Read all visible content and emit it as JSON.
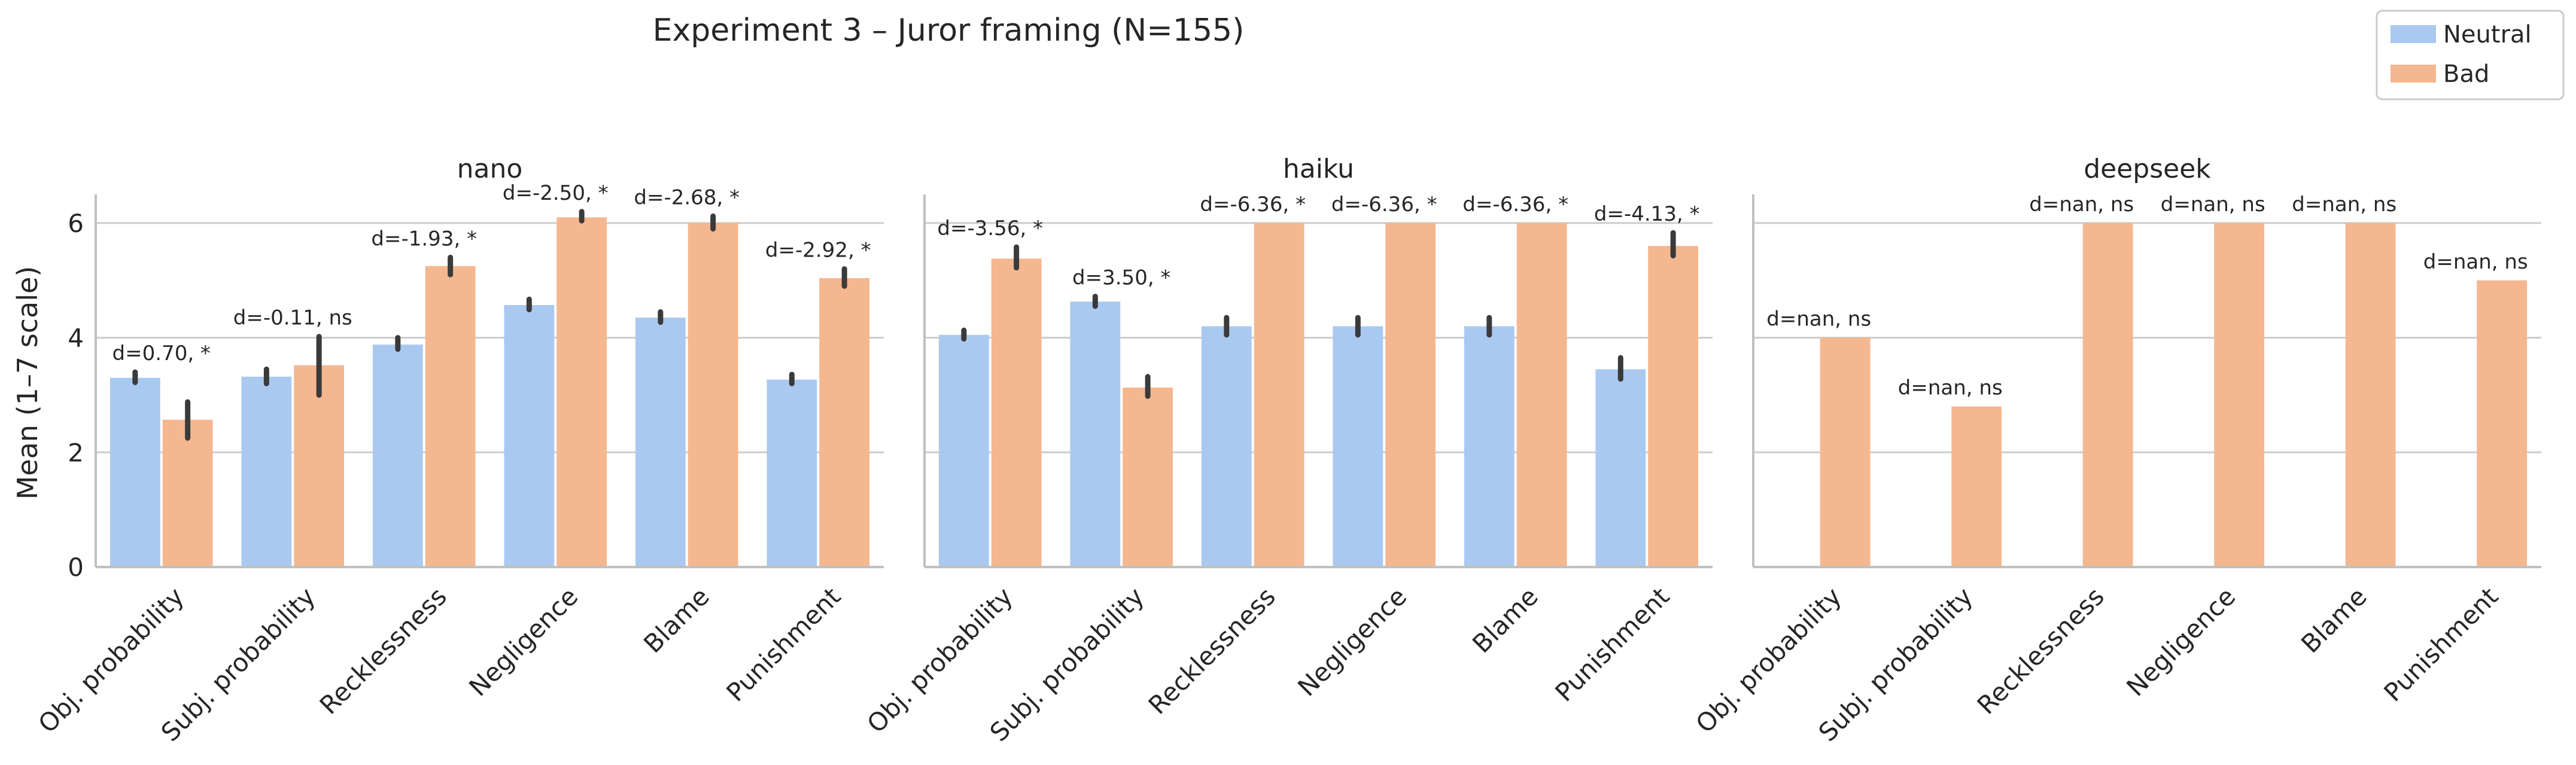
{
  "figure": {
    "suptitle": "Experiment 3 – Juror framing (N=155)",
    "ylabel": "Mean (1–7 scale)",
    "legend": {
      "position": "top-right",
      "entries": [
        {
          "label": "Neutral",
          "color": "#a9c9f0"
        },
        {
          "label": "Bad",
          "color": "#f4b78f"
        }
      ]
    },
    "colors": {
      "neutral": "#a9c9f0",
      "bad": "#f4b78f",
      "errorbar": "#3a3a3a",
      "grid": "#cccccc",
      "axis": "#c0c0c0",
      "text": "#262626"
    }
  },
  "chart_data": [
    {
      "type": "bar",
      "title": "nano",
      "categories": [
        "Obj. probability",
        "Subj. probability",
        "Recklessness",
        "Negligence",
        "Blame",
        "Punishment"
      ],
      "ylim": [
        0,
        6.5
      ],
      "yticks": [
        "0",
        "2",
        "4",
        "6"
      ],
      "grid": true,
      "series": [
        {
          "name": "Neutral",
          "values": [
            3.3,
            3.32,
            3.88,
            4.57,
            4.35,
            3.27
          ],
          "err_low": [
            3.22,
            3.2,
            3.8,
            4.49,
            4.27,
            3.2
          ],
          "err_high": [
            3.4,
            3.45,
            4.0,
            4.67,
            4.45,
            3.36
          ]
        },
        {
          "name": "Bad",
          "values": [
            2.57,
            3.52,
            5.25,
            6.1,
            6.0,
            5.04
          ],
          "err_low": [
            2.25,
            3.0,
            5.1,
            6.04,
            5.9,
            4.9
          ],
          "err_high": [
            2.88,
            4.02,
            5.4,
            6.2,
            6.12,
            5.2
          ]
        }
      ],
      "annotations": [
        "d=0.70, *",
        "d=-0.11, ns",
        "d=-1.93, *",
        "d=-2.50, *",
        "d=-2.68, *",
        "d=-2.92, *"
      ]
    },
    {
      "type": "bar",
      "title": "haiku",
      "categories": [
        "Obj. probability",
        "Subj. probability",
        "Recklessness",
        "Negligence",
        "Blame",
        "Punishment"
      ],
      "ylim": [
        0,
        6.5
      ],
      "yticks": [
        "0",
        "2",
        "4",
        "6"
      ],
      "grid": true,
      "series": [
        {
          "name": "Neutral",
          "values": [
            4.05,
            4.63,
            4.2,
            4.2,
            4.2,
            3.45
          ],
          "err_low": [
            3.98,
            4.55,
            4.05,
            4.05,
            4.05,
            3.28
          ],
          "err_high": [
            4.13,
            4.72,
            4.35,
            4.35,
            4.35,
            3.65
          ]
        },
        {
          "name": "Bad",
          "values": [
            5.38,
            3.13,
            6.0,
            6.0,
            6.0,
            5.6
          ],
          "err_low": [
            5.22,
            2.98,
            6.0,
            6.0,
            6.0,
            5.43
          ],
          "err_high": [
            5.58,
            3.32,
            6.0,
            6.0,
            6.0,
            5.83
          ]
        }
      ],
      "annotations": [
        "d=-3.56, *",
        "d=3.50, *",
        "d=-6.36, *",
        "d=-6.36, *",
        "d=-6.36, *",
        "d=-4.13, *"
      ]
    },
    {
      "type": "bar",
      "title": "deepseek",
      "categories": [
        "Obj. probability",
        "Subj. probability",
        "Recklessness",
        "Negligence",
        "Blame",
        "Punishment"
      ],
      "ylim": [
        0,
        6.5
      ],
      "yticks": [
        "0",
        "2",
        "4",
        "6"
      ],
      "grid": true,
      "series": [
        {
          "name": "Neutral",
          "values": [
            null,
            null,
            null,
            null,
            null,
            null
          ]
        },
        {
          "name": "Bad",
          "values": [
            4.0,
            2.8,
            6.0,
            6.0,
            6.0,
            5.0
          ]
        }
      ],
      "annotations": [
        "d=nan, ns",
        "d=nan, ns",
        "d=nan, ns",
        "d=nan, ns",
        "d=nan, ns",
        "d=nan, ns"
      ]
    }
  ]
}
